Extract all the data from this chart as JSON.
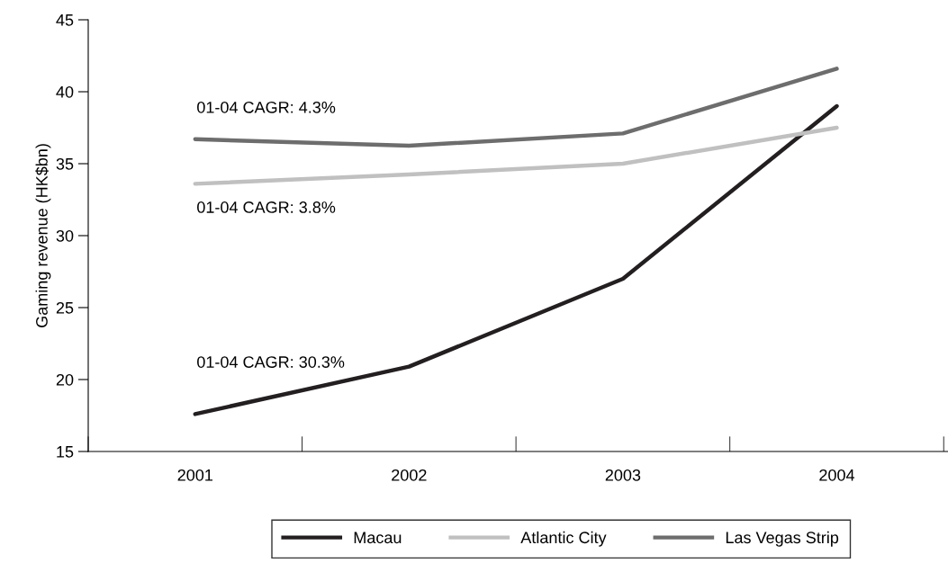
{
  "chart_data": {
    "type": "line",
    "ylabel": "Gaming revenue (HK$bn)",
    "categories": [
      "2001",
      "2002",
      "2003",
      "2004"
    ],
    "series": [
      {
        "name": "Macau",
        "color": "#231f20",
        "values": [
          17.6,
          20.9,
          27.0,
          39.0
        ]
      },
      {
        "name": "Atlantic City",
        "color": "#c0c0c0",
        "values": [
          33.6,
          34.25,
          35.0,
          37.5
        ]
      },
      {
        "name": "Las Vegas Strip",
        "color": "#6d6d6d",
        "values": [
          36.7,
          36.25,
          37.1,
          41.6
        ]
      }
    ],
    "ylim": [
      15,
      45
    ],
    "yticks": [
      15,
      20,
      25,
      30,
      35,
      40,
      45
    ],
    "grid": false,
    "legend": "bottom",
    "marker": "none",
    "line_style": "solid",
    "annotations": [
      "01-04 CAGR: 4.3%",
      "01-04 CAGR: 3.8%",
      "01-04 CAGR: 30.3%"
    ]
  }
}
